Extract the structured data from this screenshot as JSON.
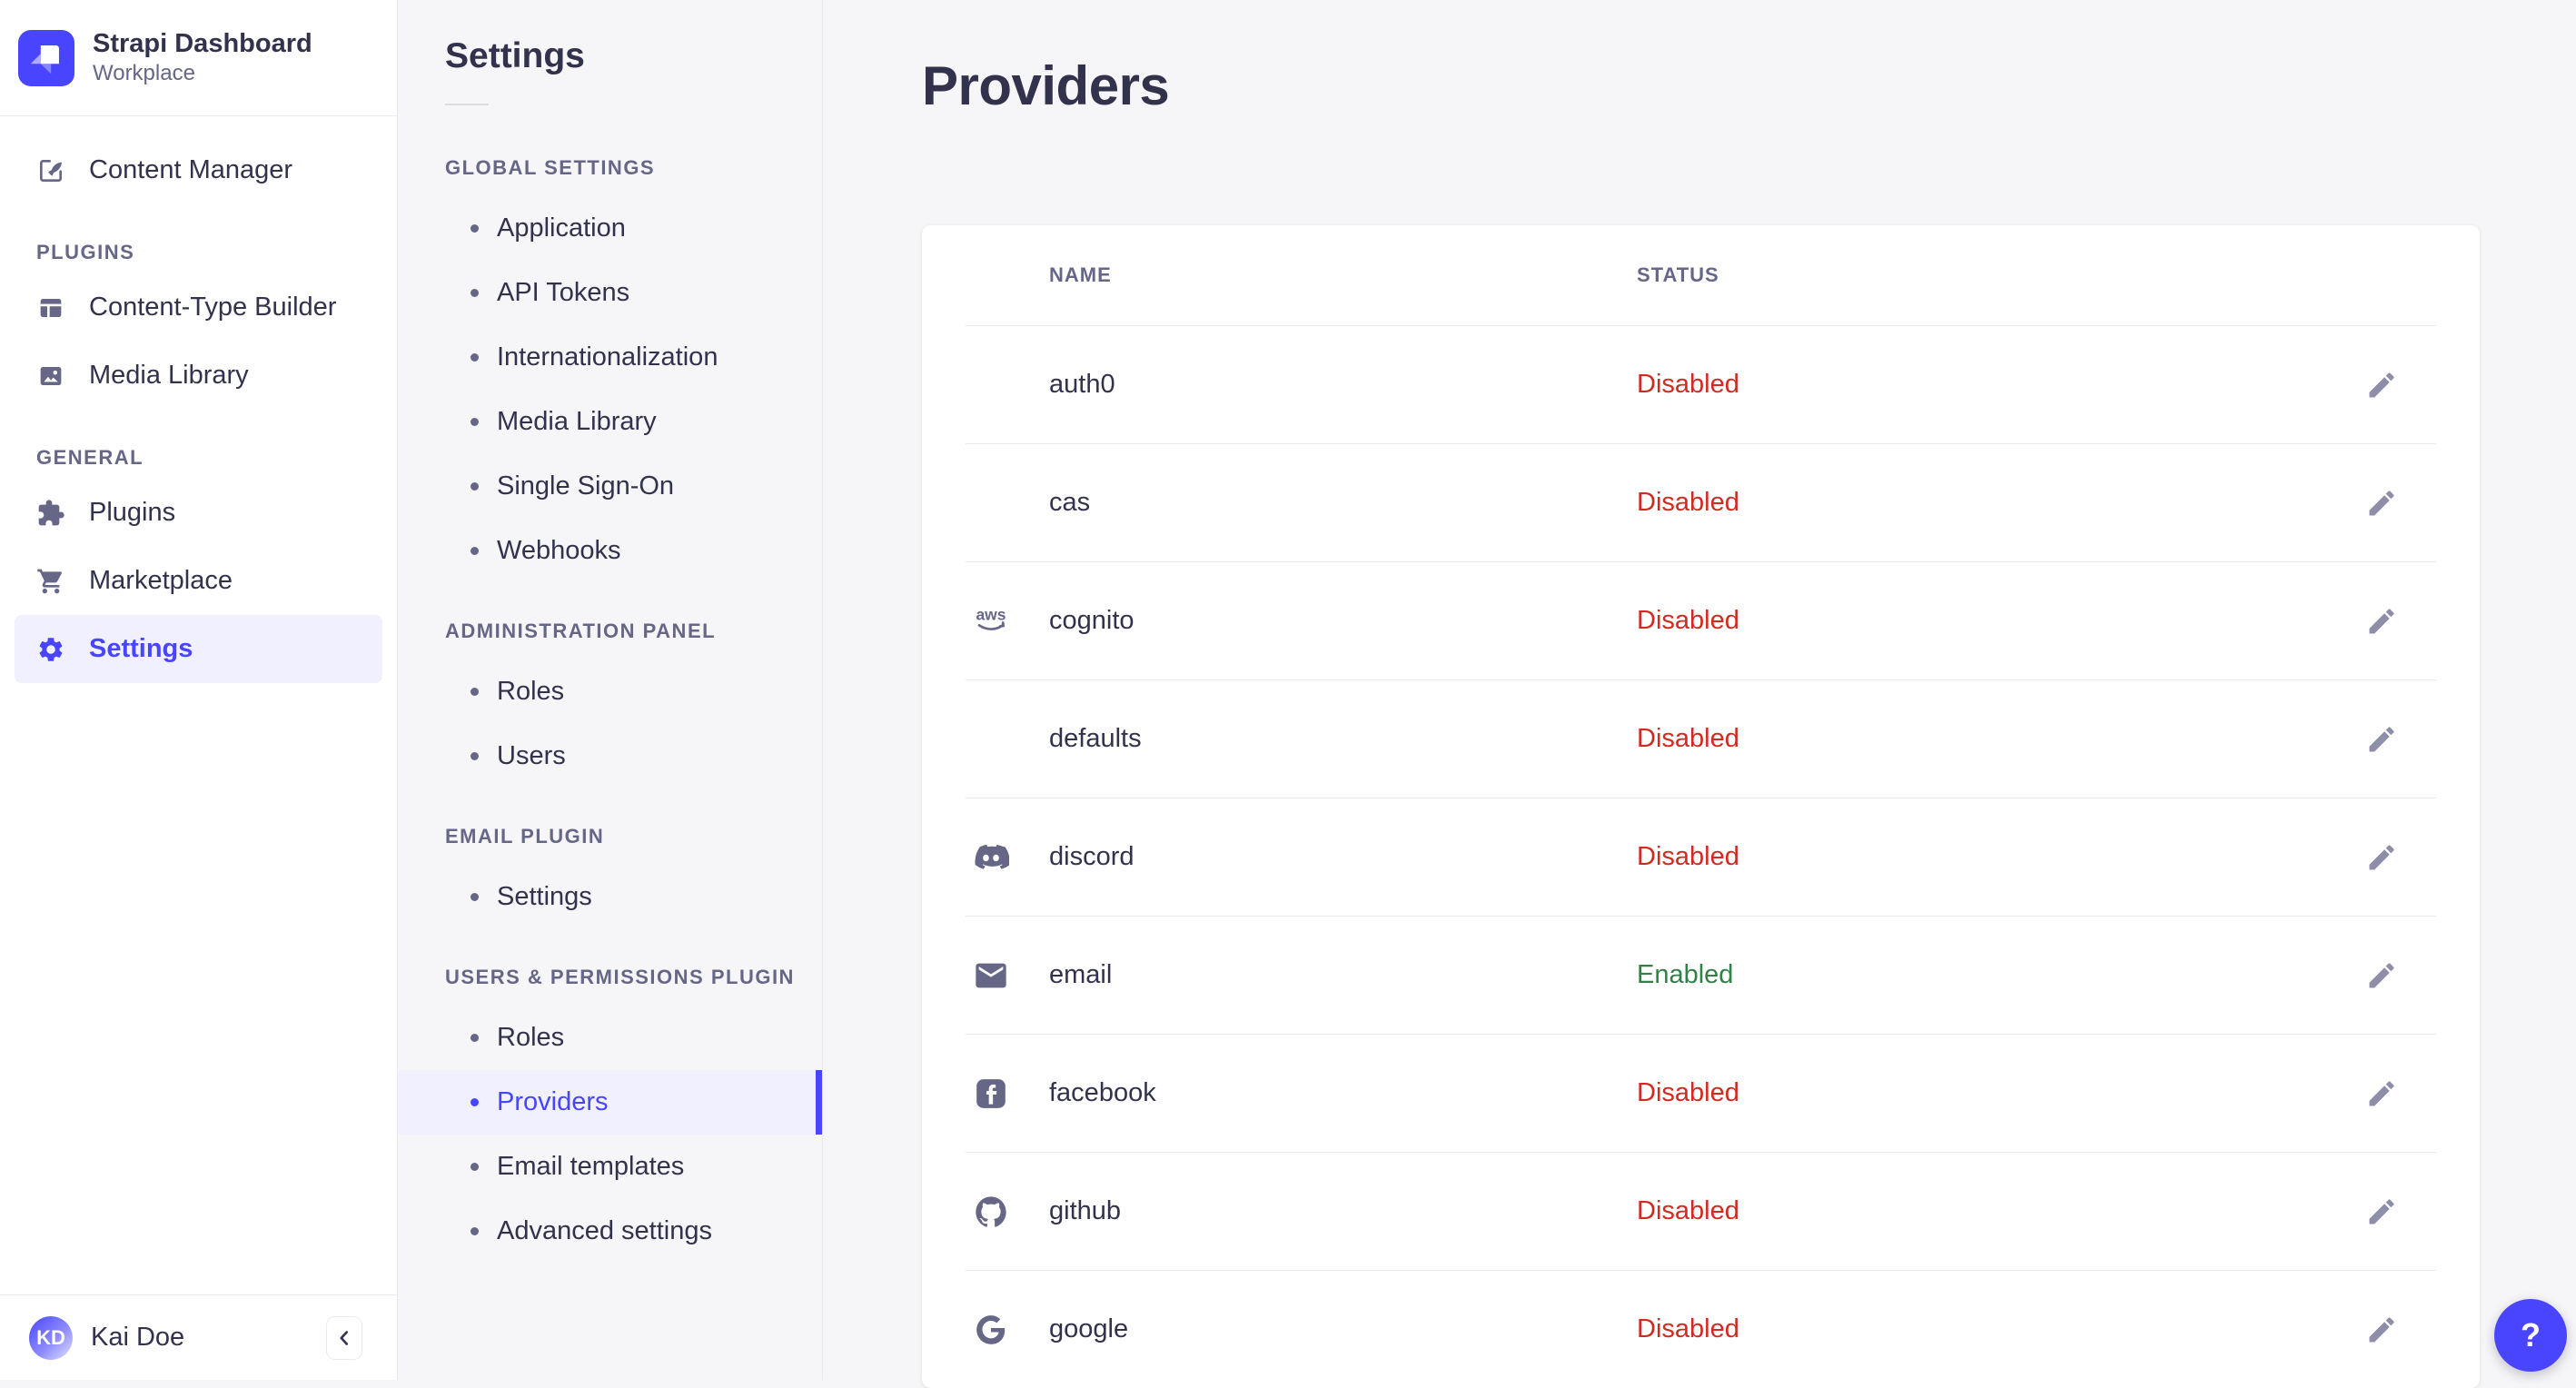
{
  "brand": {
    "title": "Strapi Dashboard",
    "subtitle": "Workplace"
  },
  "main_nav": {
    "sections": [
      {
        "header": null,
        "items": [
          {
            "label": "Content Manager",
            "icon": "content-manager"
          }
        ]
      },
      {
        "header": "PLUGINS",
        "items": [
          {
            "label": "Content-Type Builder",
            "icon": "content-type-builder"
          },
          {
            "label": "Media Library",
            "icon": "media-library"
          }
        ]
      },
      {
        "header": "GENERAL",
        "items": [
          {
            "label": "Plugins",
            "icon": "plugins"
          },
          {
            "label": "Marketplace",
            "icon": "marketplace"
          },
          {
            "label": "Settings",
            "icon": "settings",
            "active": true
          }
        ]
      }
    ],
    "user": {
      "initials": "KD",
      "name": "Kai Doe"
    }
  },
  "settings_nav": {
    "title": "Settings",
    "sections": [
      {
        "header": "GLOBAL SETTINGS",
        "items": [
          {
            "label": "Application"
          },
          {
            "label": "API Tokens"
          },
          {
            "label": "Internationalization"
          },
          {
            "label": "Media Library"
          },
          {
            "label": "Single Sign-On"
          },
          {
            "label": "Webhooks"
          }
        ]
      },
      {
        "header": "ADMINISTRATION PANEL",
        "items": [
          {
            "label": "Roles"
          },
          {
            "label": "Users"
          }
        ]
      },
      {
        "header": "EMAIL PLUGIN",
        "items": [
          {
            "label": "Settings"
          }
        ]
      },
      {
        "header": "USERS & PERMISSIONS PLUGIN",
        "items": [
          {
            "label": "Roles"
          },
          {
            "label": "Providers",
            "active": true
          },
          {
            "label": "Email templates"
          },
          {
            "label": "Advanced settings"
          }
        ]
      }
    ]
  },
  "main": {
    "title": "Providers",
    "table": {
      "columns": [
        "NAME",
        "STATUS"
      ],
      "rows": [
        {
          "icon": null,
          "name": "auth0",
          "status": "Disabled"
        },
        {
          "icon": null,
          "name": "cas",
          "status": "Disabled"
        },
        {
          "icon": "aws",
          "name": "cognito",
          "status": "Disabled"
        },
        {
          "icon": null,
          "name": "defaults",
          "status": "Disabled"
        },
        {
          "icon": "discord",
          "name": "discord",
          "status": "Disabled"
        },
        {
          "icon": "email",
          "name": "email",
          "status": "Enabled"
        },
        {
          "icon": "facebook",
          "name": "facebook",
          "status": "Disabled"
        },
        {
          "icon": "github",
          "name": "github",
          "status": "Disabled"
        },
        {
          "icon": "google",
          "name": "google",
          "status": "Disabled"
        }
      ]
    }
  },
  "help": {
    "label": "?"
  },
  "colors": {
    "primary": "#4945ff",
    "primary_bg": "#f0f0ff",
    "danger": "#d02b20",
    "success": "#328048",
    "text": "#32324d",
    "muted": "#666687",
    "icon_muted": "#8e8ea9",
    "border": "#eaeaef",
    "bg": "#f6f6f9"
  }
}
